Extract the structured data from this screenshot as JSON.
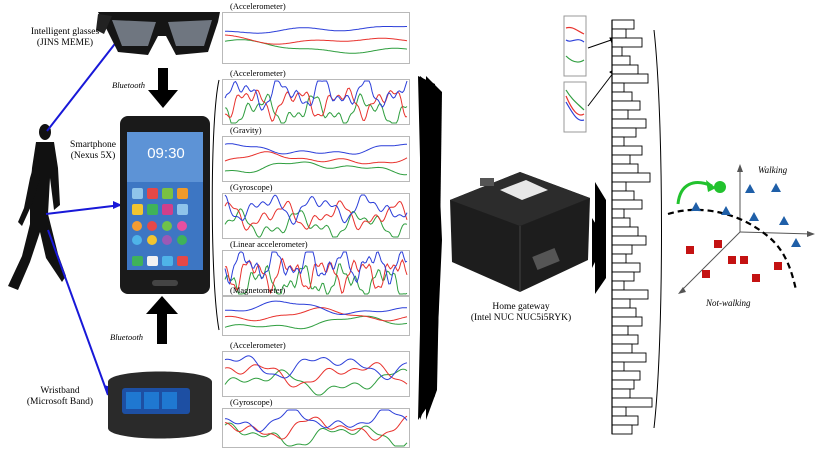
{
  "devices": {
    "glasses_name": "Intelligent glasses",
    "glasses_model": "(JINS MEME)",
    "phone_name": "Smartphone",
    "phone_model": "(Nexus 5X)",
    "phone_time": "09:30",
    "band_name": "Wristband",
    "band_model": "(Microsoft Band)"
  },
  "links": {
    "bluetooth_top": "Bluetooth",
    "bluetooth_bottom": "Bluetooth"
  },
  "sensors": {
    "glasses": [
      "(Accelerometer)"
    ],
    "phone": [
      "(Accelerometer)",
      "(Gravity)",
      "(Gyroscope)",
      "(Linear accelerometer)",
      "(Magnetometer)"
    ],
    "band": [
      "(Accelerometer)",
      "(Gyroscope)"
    ]
  },
  "gateway": {
    "name": "Home gateway",
    "model": "(Intel NUC NUC5i5RYK)"
  },
  "classifier": {
    "class_positive": "Walking",
    "class_negative": "Not-walking"
  },
  "colors": {
    "series_red": "#e8322d",
    "series_green": "#2f9e3f",
    "series_blue": "#2c3fd9",
    "link_blue": "#1818d8",
    "walking_marker": "#1f5fa8",
    "not_walking_marker": "#c41212",
    "new_sample": "#22c22e"
  }
}
